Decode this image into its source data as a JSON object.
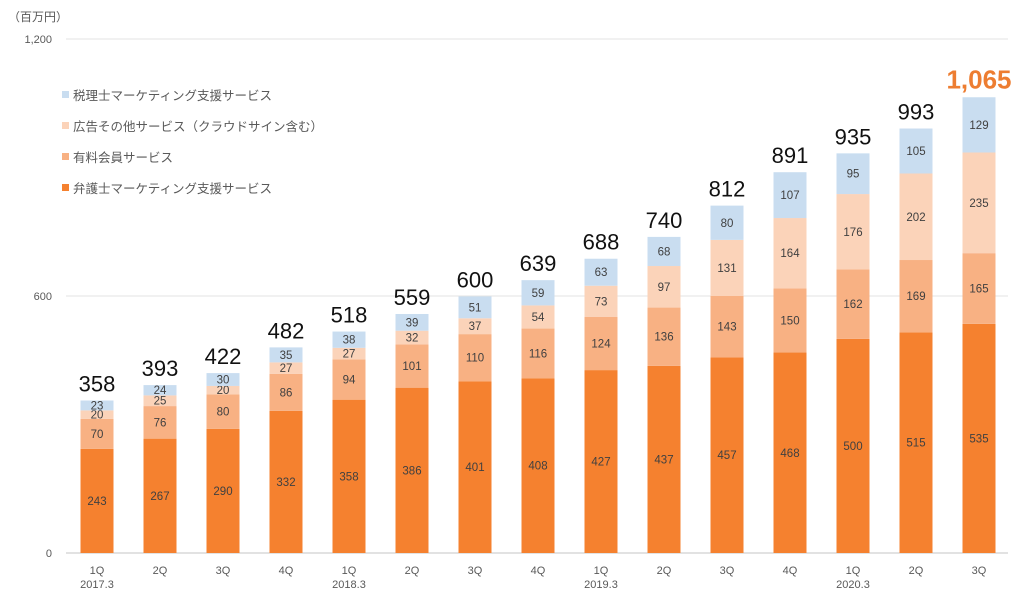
{
  "chart_data": {
    "type": "bar",
    "stacked": true,
    "unit_label": "（百万円）",
    "yticks": [
      0,
      600,
      1200
    ],
    "ytick_labels": [
      "0",
      "600",
      "1,200"
    ],
    "ylim": [
      0,
      1200
    ],
    "grid": true,
    "legend_position": "top-left",
    "categories": [
      "1Q",
      "2Q",
      "3Q",
      "4Q",
      "1Q",
      "2Q",
      "3Q",
      "4Q",
      "1Q",
      "2Q",
      "3Q",
      "4Q",
      "1Q",
      "2Q",
      "3Q"
    ],
    "category_sublabels": [
      "2017.3",
      "",
      "",
      "",
      "2018.3",
      "",
      "",
      "",
      "2019.3",
      "",
      "",
      "",
      "2020.3",
      "",
      ""
    ],
    "series": [
      {
        "name": "弁護士マーケティング支援サービス",
        "color": "#F5812F",
        "values": [
          243,
          267,
          290,
          332,
          358,
          386,
          401,
          408,
          427,
          437,
          457,
          468,
          500,
          515,
          535
        ]
      },
      {
        "name": "有料会員サービス",
        "color": "#F8B183",
        "values": [
          70,
          76,
          80,
          86,
          94,
          101,
          110,
          116,
          124,
          136,
          143,
          150,
          162,
          169,
          165
        ]
      },
      {
        "name": "広告その他サービス（クラウドサイン含む）",
        "color": "#FBD3B9",
        "values": [
          20,
          25,
          20,
          27,
          27,
          32,
          37,
          54,
          73,
          97,
          131,
          164,
          176,
          202,
          235
        ]
      },
      {
        "name": "税理士マーケティング支援サービス",
        "color": "#C9DDF0",
        "values": [
          23,
          24,
          30,
          35,
          38,
          39,
          51,
          59,
          63,
          68,
          80,
          107,
          95,
          105,
          129
        ]
      }
    ],
    "totals": [
      "358",
      "393",
      "422",
      "482",
      "518",
      "559",
      "600",
      "639",
      "688",
      "740",
      "812",
      "891",
      "935",
      "993",
      "1,065"
    ],
    "highlight_total_color": "#ED7D31",
    "legend_order": [
      3,
      2,
      1,
      0
    ]
  }
}
